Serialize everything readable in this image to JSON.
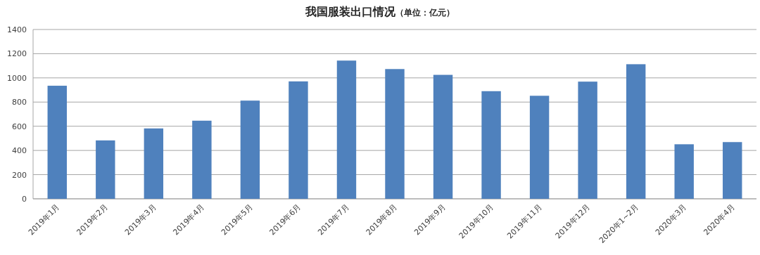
{
  "chart_data": {
    "type": "bar",
    "title": "我国服装出口情况",
    "subtitle": "（单位：亿元）",
    "categories": [
      "2019年1月",
      "2019年2月",
      "2019年3月",
      "2019年4月",
      "2019年5月",
      "2019年6月",
      "2019年7月",
      "2019年8月",
      "2019年9月",
      "2019年10月",
      "2019年11月",
      "2019年12月",
      "2020年1~2月",
      "2020年3月",
      "2020年4月"
    ],
    "values": [
      935,
      483,
      582,
      646,
      812,
      971,
      1143,
      1073,
      1025,
      890,
      852,
      969,
      1113,
      451,
      469
    ],
    "color": "#4f81bd",
    "ylim": [
      0,
      1400
    ],
    "yticks": [
      0,
      200,
      400,
      600,
      800,
      1000,
      1200,
      1400
    ],
    "grid": "y"
  }
}
